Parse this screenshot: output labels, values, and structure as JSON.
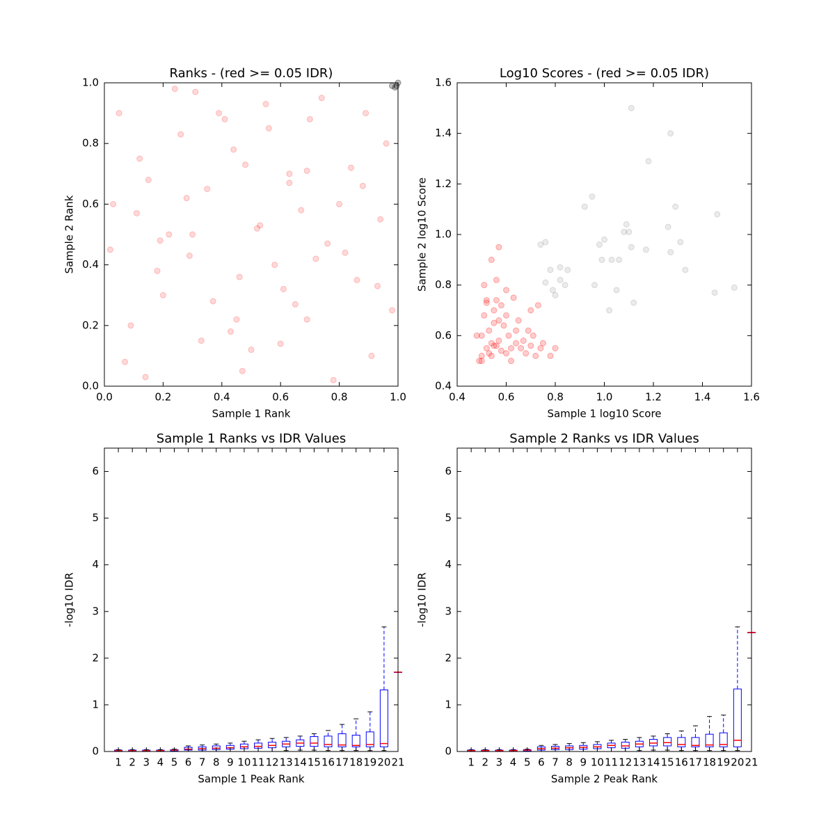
{
  "chart_data": [
    {
      "type": "scatter",
      "title": "Ranks - (red >= 0.05 IDR)",
      "xlabel": "Sample 1 Rank",
      "ylabel": "Sample 2 Rank",
      "xlim": [
        0,
        1
      ],
      "ylim": [
        0,
        1
      ],
      "xticks": [
        {
          "value": 0,
          "label": "0.0"
        },
        0.2,
        0.4,
        0.6,
        0.8,
        {
          "value": 1,
          "label": "1.0"
        }
      ],
      "yticks": [
        {
          "value": 0,
          "label": "0.0"
        },
        0.2,
        0.4,
        0.6,
        0.8,
        {
          "value": 1,
          "label": "1.0"
        }
      ],
      "series": [
        {
          "color": "#ff0000",
          "opacity": 0.15,
          "x": [
            0.05,
            0.12,
            0.2,
            0.28,
            0.33,
            0.41,
            0.47,
            0.52,
            0.58,
            0.63,
            0.69,
            0.74,
            0.8,
            0.86,
            0.91,
            0.96,
            0.02,
            0.09,
            0.15,
            0.24,
            0.3,
            0.37,
            0.44,
            0.5,
            0.56,
            0.61,
            0.67,
            0.72,
            0.78,
            0.84,
            0.89,
            0.94,
            0.07,
            0.18,
            0.26,
            0.35,
            0.43,
            0.55,
            0.65,
            0.76,
            0.88,
            0.98,
            0.03,
            0.14,
            0.22,
            0.39,
            0.48,
            0.6,
            0.7,
            0.82,
            0.93,
            0.11,
            0.31,
            0.46,
            0.53,
            0.69,
            0.19,
            0.63,
            0.45,
            0.29
          ],
          "y": [
            0.9,
            0.75,
            0.3,
            0.62,
            0.15,
            0.88,
            0.05,
            0.52,
            0.4,
            0.7,
            0.22,
            0.95,
            0.6,
            0.35,
            0.1,
            0.8,
            0.45,
            0.2,
            0.68,
            0.98,
            0.5,
            0.28,
            0.78,
            0.12,
            0.85,
            0.32,
            0.58,
            0.42,
            0.02,
            0.72,
            0.9,
            0.55,
            0.08,
            0.38,
            0.83,
            0.65,
            0.18,
            0.93,
            0.27,
            0.47,
            0.66,
            0.25,
            0.6,
            0.03,
            0.5,
            0.9,
            0.73,
            0.14,
            0.88,
            0.44,
            0.33,
            0.57,
            0.97,
            0.36,
            0.53,
            0.71,
            0.48,
            0.67,
            0.22,
            0.43
          ]
        },
        {
          "color": "#000000",
          "opacity": 0.25,
          "x": [
            0.98,
            0.99,
            1.0,
            0.995
          ],
          "y": [
            0.99,
            0.985,
            1.0,
            0.99
          ]
        }
      ]
    },
    {
      "type": "scatter",
      "title": "Log10 Scores - (red >= 0.05 IDR)",
      "xlabel": "Sample 1 log10 Score",
      "ylabel": "Sample 2 log10 Score",
      "xlim": [
        0.4,
        1.6
      ],
      "ylim": [
        0.4,
        1.6
      ],
      "xticks": [
        0.4,
        0.6,
        0.8,
        {
          "value": 1,
          "label": "1.0"
        },
        1.2,
        1.4,
        1.6
      ],
      "yticks": [
        0.4,
        0.6,
        0.8,
        {
          "value": 1,
          "label": "1.0"
        },
        1.2,
        1.4,
        1.6
      ],
      "series": [
        {
          "color": "#000000",
          "opacity": 0.08,
          "x": [
            1.11,
            1.27,
            1.18,
            1.29,
            0.95,
            0.92,
            1.09,
            1.1,
            1.08,
            1.26,
            1.46,
            1.0,
            0.98,
            1.11,
            1.31,
            0.99,
            1.03,
            1.06,
            1.17,
            1.27,
            0.82,
            0.78,
            0.85,
            1.33,
            0.96,
            1.05,
            1.53,
            0.82,
            0.84,
            0.76,
            0.79,
            0.8,
            1.12,
            1.45,
            1.02,
            0.76,
            0.74
          ],
          "y": [
            1.5,
            1.4,
            1.29,
            1.11,
            1.15,
            1.11,
            1.04,
            1.01,
            1.01,
            1.03,
            1.08,
            0.98,
            0.96,
            0.95,
            0.97,
            0.9,
            0.9,
            0.9,
            0.94,
            0.93,
            0.87,
            0.86,
            0.86,
            0.86,
            0.8,
            0.78,
            0.79,
            0.82,
            0.8,
            0.81,
            0.78,
            0.76,
            0.73,
            0.77,
            0.7,
            0.97,
            0.96
          ]
        },
        {
          "color": "#ff0000",
          "opacity": 0.2,
          "x": [
            0.5,
            0.52,
            0.54,
            0.56,
            0.58,
            0.6,
            0.62,
            0.5,
            0.53,
            0.55,
            0.57,
            0.59,
            0.61,
            0.64,
            0.66,
            0.68,
            0.7,
            0.72,
            0.74,
            0.49,
            0.51,
            0.55,
            0.6,
            0.65,
            0.7,
            0.73,
            0.52,
            0.56,
            0.58,
            0.48,
            0.5,
            0.54,
            0.57,
            0.62,
            0.67,
            0.71,
            0.75,
            0.53,
            0.55,
            0.51,
            0.56,
            0.6,
            0.64,
            0.69,
            0.8,
            0.78,
            0.57,
            0.63,
            0.54,
            0.52
          ],
          "y": [
            0.52,
            0.55,
            0.57,
            0.56,
            0.54,
            0.53,
            0.5,
            0.6,
            0.62,
            0.65,
            0.66,
            0.64,
            0.6,
            0.57,
            0.55,
            0.53,
            0.56,
            0.52,
            0.55,
            0.5,
            0.68,
            0.7,
            0.68,
            0.66,
            0.7,
            0.72,
            0.74,
            0.74,
            0.72,
            0.6,
            0.5,
            0.52,
            0.58,
            0.55,
            0.58,
            0.6,
            0.57,
            0.53,
            0.56,
            0.8,
            0.82,
            0.78,
            0.62,
            0.62,
            0.55,
            0.52,
            0.95,
            0.75,
            0.9,
            0.73
          ]
        }
      ]
    },
    {
      "type": "box",
      "title": "Sample 1 Ranks vs IDR Values",
      "xlabel": "Sample 1 Peak Rank",
      "ylabel": "-log10 IDR",
      "xlim": [
        0,
        21
      ],
      "ylim": [
        0,
        6.5
      ],
      "xticks": [
        1,
        2,
        3,
        4,
        5,
        6,
        7,
        8,
        9,
        10,
        11,
        12,
        13,
        14,
        15,
        16,
        17,
        18,
        19,
        20,
        21
      ],
      "yticks": [
        0,
        1,
        2,
        3,
        4,
        5,
        6
      ],
      "boxes": [
        {
          "whislo": 0,
          "q1": 0.01,
          "median": 0.02,
          "q3": 0.03,
          "whishi": 0.04
        },
        {
          "whislo": 0,
          "q1": 0.01,
          "median": 0.02,
          "q3": 0.03,
          "whishi": 0.04
        },
        {
          "whislo": 0,
          "q1": 0.01,
          "median": 0.02,
          "q3": 0.03,
          "whishi": 0.04
        },
        {
          "whislo": 0,
          "q1": 0.01,
          "median": 0.02,
          "q3": 0.03,
          "whishi": 0.04
        },
        {
          "whislo": 0,
          "q1": 0.01,
          "median": 0.03,
          "q3": 0.04,
          "whishi": 0.05
        },
        {
          "whislo": 0,
          "q1": 0.03,
          "median": 0.05,
          "q3": 0.09,
          "whishi": 0.12
        },
        {
          "whislo": 0,
          "q1": 0.03,
          "median": 0.06,
          "q3": 0.1,
          "whishi": 0.14
        },
        {
          "whislo": 0,
          "q1": 0.04,
          "median": 0.07,
          "q3": 0.12,
          "whishi": 0.16
        },
        {
          "whislo": 0,
          "q1": 0.05,
          "median": 0.08,
          "q3": 0.13,
          "whishi": 0.18
        },
        {
          "whislo": 0,
          "q1": 0.06,
          "median": 0.1,
          "q3": 0.16,
          "whishi": 0.22
        },
        {
          "whislo": 0,
          "q1": 0.07,
          "median": 0.11,
          "q3": 0.18,
          "whishi": 0.25
        },
        {
          "whislo": 0,
          "q1": 0.08,
          "median": 0.13,
          "q3": 0.2,
          "whishi": 0.28
        },
        {
          "whislo": 0.02,
          "q1": 0.1,
          "median": 0.16,
          "q3": 0.22,
          "whishi": 0.3
        },
        {
          "whislo": 0.03,
          "q1": 0.11,
          "median": 0.18,
          "q3": 0.25,
          "whishi": 0.33
        },
        {
          "whislo": 0.03,
          "q1": 0.11,
          "median": 0.18,
          "q3": 0.32,
          "whishi": 0.38
        },
        {
          "whislo": 0.02,
          "q1": 0.1,
          "median": 0.15,
          "q3": 0.33,
          "whishi": 0.45
        },
        {
          "whislo": 0.02,
          "q1": 0.1,
          "median": 0.14,
          "q3": 0.38,
          "whishi": 0.58
        },
        {
          "whislo": 0.02,
          "q1": 0.1,
          "median": 0.13,
          "q3": 0.35,
          "whishi": 0.7
        },
        {
          "whislo": 0.02,
          "q1": 0.1,
          "median": 0.15,
          "q3": 0.42,
          "whishi": 0.85
        },
        {
          "whislo": 0.02,
          "q1": 0.1,
          "median": 0.17,
          "q3": 1.32,
          "whishi": 2.67
        },
        {
          "whislo": 1.7,
          "q1": 1.7,
          "median": 1.7,
          "q3": 1.7,
          "whishi": 1.7
        }
      ]
    },
    {
      "type": "box",
      "title": "Sample 2 Ranks vs IDR Values",
      "xlabel": "Sample 2 Peak Rank",
      "ylabel": "-log10 IDR",
      "xlim": [
        0,
        21
      ],
      "ylim": [
        0,
        6.5
      ],
      "xticks": [
        1,
        2,
        3,
        4,
        5,
        6,
        7,
        8,
        9,
        10,
        11,
        12,
        13,
        14,
        15,
        16,
        17,
        18,
        19,
        20,
        21
      ],
      "yticks": [
        0,
        1,
        2,
        3,
        4,
        5,
        6
      ],
      "boxes": [
        {
          "whislo": 0,
          "q1": 0.01,
          "median": 0.02,
          "q3": 0.03,
          "whishi": 0.04
        },
        {
          "whislo": 0,
          "q1": 0.01,
          "median": 0.02,
          "q3": 0.03,
          "whishi": 0.04
        },
        {
          "whislo": 0,
          "q1": 0.01,
          "median": 0.02,
          "q3": 0.03,
          "whishi": 0.04
        },
        {
          "whislo": 0,
          "q1": 0.01,
          "median": 0.02,
          "q3": 0.03,
          "whishi": 0.04
        },
        {
          "whislo": 0,
          "q1": 0.01,
          "median": 0.03,
          "q3": 0.04,
          "whishi": 0.05
        },
        {
          "whislo": 0,
          "q1": 0.03,
          "median": 0.06,
          "q3": 0.1,
          "whishi": 0.13
        },
        {
          "whislo": 0,
          "q1": 0.04,
          "median": 0.07,
          "q3": 0.11,
          "whishi": 0.15
        },
        {
          "whislo": 0,
          "q1": 0.04,
          "median": 0.08,
          "q3": 0.12,
          "whishi": 0.17
        },
        {
          "whislo": 0,
          "q1": 0.05,
          "median": 0.09,
          "q3": 0.13,
          "whishi": 0.19
        },
        {
          "whislo": 0,
          "q1": 0.06,
          "median": 0.1,
          "q3": 0.15,
          "whishi": 0.21
        },
        {
          "whislo": 0,
          "q1": 0.08,
          "median": 0.13,
          "q3": 0.18,
          "whishi": 0.24
        },
        {
          "whislo": 0,
          "q1": 0.07,
          "median": 0.12,
          "q3": 0.2,
          "whishi": 0.26
        },
        {
          "whislo": 0.02,
          "q1": 0.1,
          "median": 0.16,
          "q3": 0.22,
          "whishi": 0.3
        },
        {
          "whislo": 0.03,
          "q1": 0.12,
          "median": 0.18,
          "q3": 0.26,
          "whishi": 0.33
        },
        {
          "whislo": 0.03,
          "q1": 0.12,
          "median": 0.19,
          "q3": 0.3,
          "whishi": 0.38
        },
        {
          "whislo": 0.02,
          "q1": 0.1,
          "median": 0.15,
          "q3": 0.3,
          "whishi": 0.44
        },
        {
          "whislo": 0.02,
          "q1": 0.1,
          "median": 0.13,
          "q3": 0.3,
          "whishi": 0.55
        },
        {
          "whislo": 0.02,
          "q1": 0.1,
          "median": 0.14,
          "q3": 0.37,
          "whishi": 0.75
        },
        {
          "whislo": 0.02,
          "q1": 0.1,
          "median": 0.15,
          "q3": 0.4,
          "whishi": 0.78
        },
        {
          "whislo": 0.02,
          "q1": 0.1,
          "median": 0.24,
          "q3": 1.34,
          "whishi": 2.67
        },
        {
          "whislo": 2.55,
          "q1": 2.55,
          "median": 2.55,
          "q3": 2.55,
          "whishi": 2.55
        }
      ]
    }
  ]
}
